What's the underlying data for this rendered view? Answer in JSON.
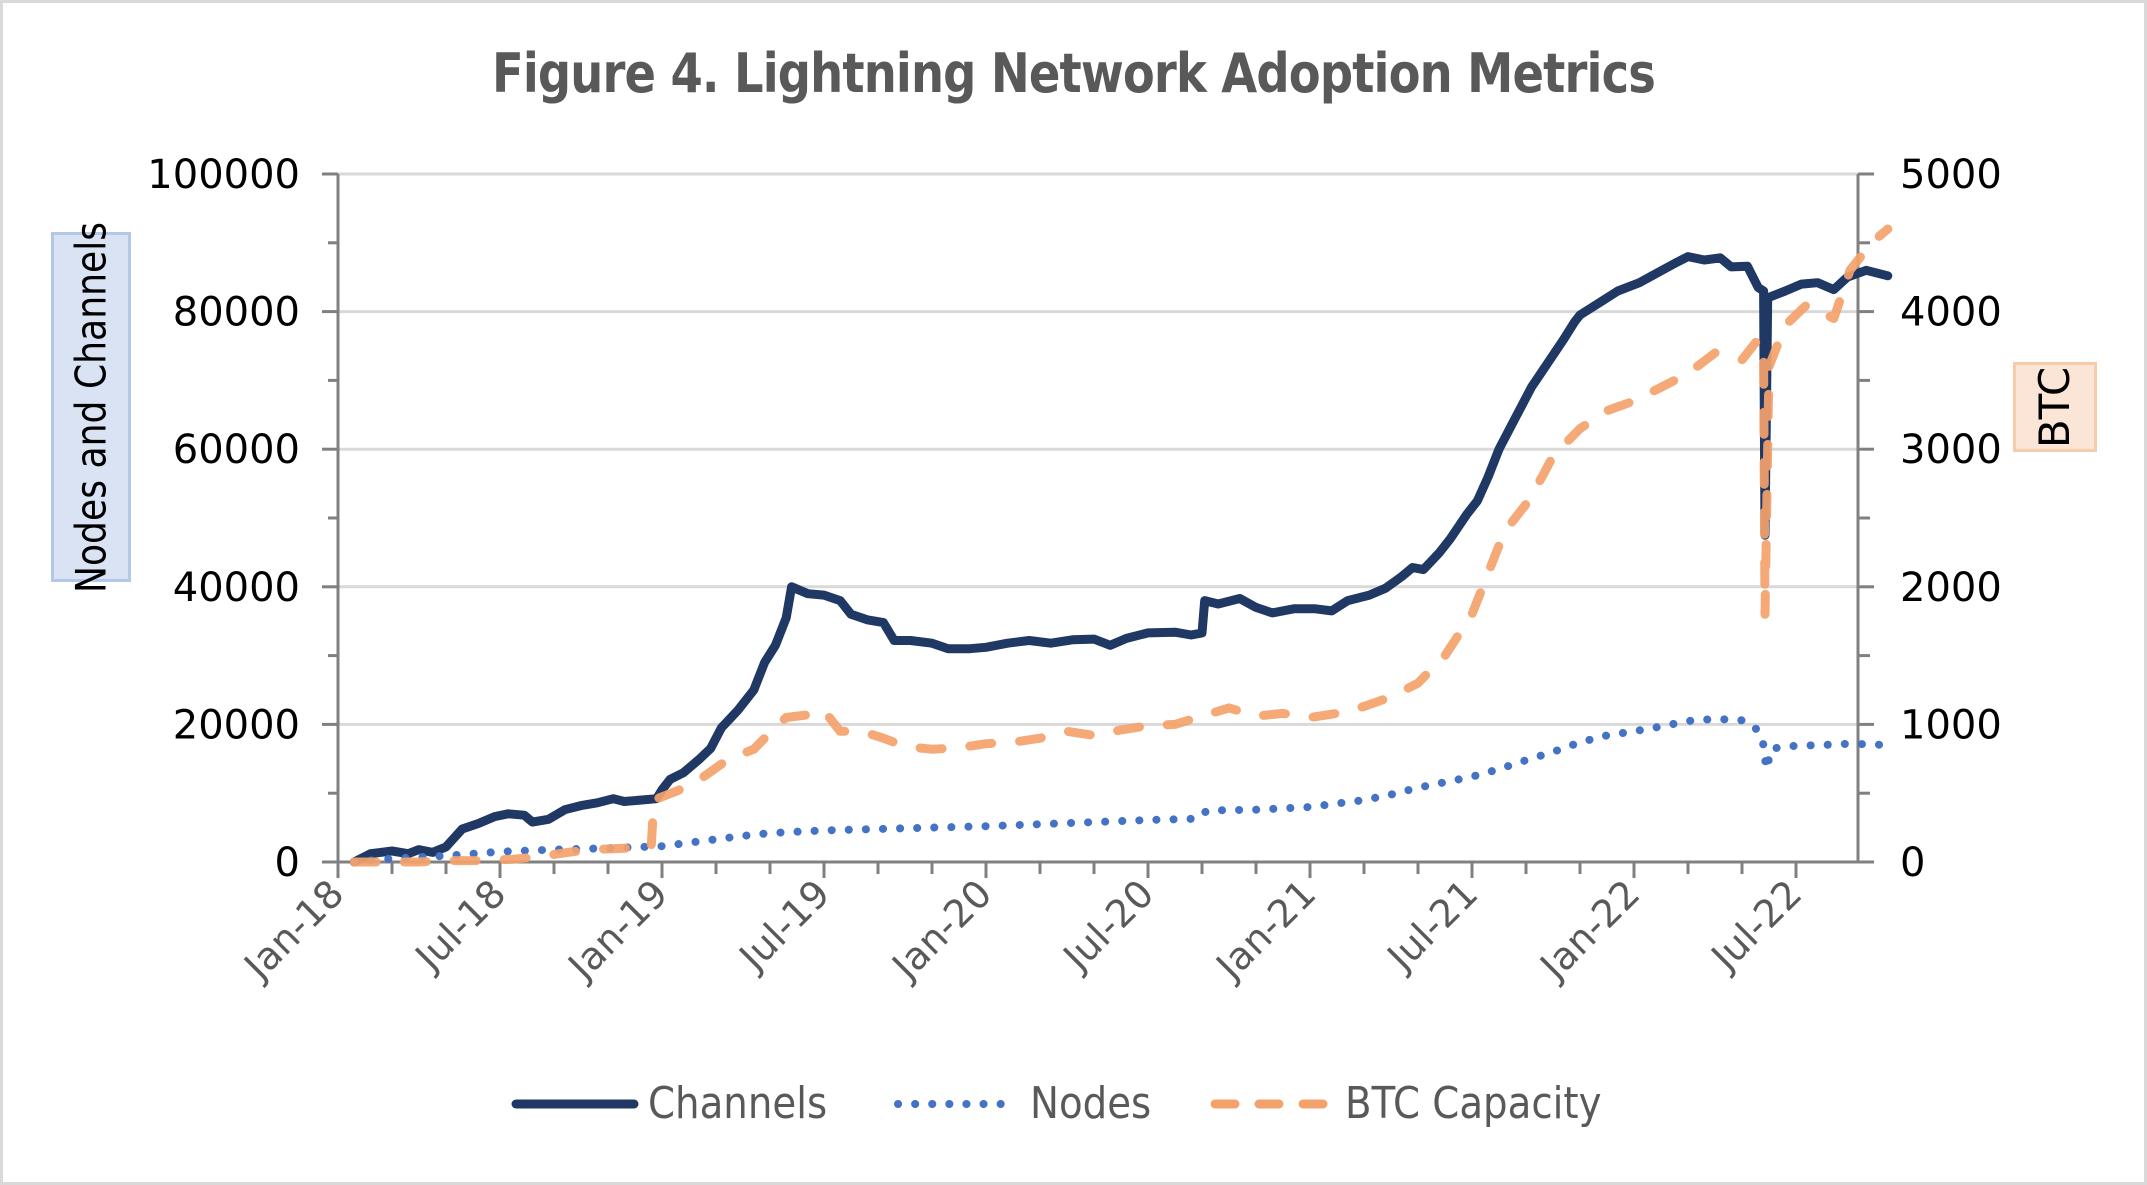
{
  "chart_data": {
    "type": "line",
    "title": "Figure 4. Lightning Network Adoption Metrics",
    "xlabel": "",
    "ylabel": "Nodes and Channels",
    "y2label": "BTC",
    "ylim": [
      0,
      100000
    ],
    "y2lim": [
      0,
      5000
    ],
    "yticks": [
      "0",
      "20000",
      "40000",
      "60000",
      "80000",
      "100000"
    ],
    "y2ticks": [
      "0",
      "1000",
      "2000",
      "3000",
      "4000",
      "5000"
    ],
    "xlim_months_from_jan18": [
      0,
      56.3
    ],
    "xtick_labels": [
      "Jan-18",
      "Jul-18",
      "Jan-19",
      "Jul-19",
      "Jan-20",
      "Jul-20",
      "Jan-21",
      "Jul-21",
      "Jan-22",
      "Jul-22"
    ],
    "xtick_label_months": [
      0,
      6,
      12,
      18,
      24,
      30,
      36,
      42,
      48,
      54
    ],
    "minor_tick_interval_months": 2,
    "grid": "horizontal",
    "legend_position": "bottom",
    "legend": [
      "Channels",
      "Nodes",
      "BTC Capacity"
    ],
    "series": [
      {
        "name": "Channels",
        "axis": "left",
        "style": "solid",
        "color": "#1f3864",
        "points": [
          [
            0.6,
            0
          ],
          [
            1.2,
            1200
          ],
          [
            2.0,
            1600
          ],
          [
            2.6,
            1200
          ],
          [
            3.0,
            1800
          ],
          [
            3.5,
            1400
          ],
          [
            4.0,
            2200
          ],
          [
            4.6,
            4800
          ],
          [
            5.2,
            5600
          ],
          [
            5.8,
            6600
          ],
          [
            6.3,
            7000
          ],
          [
            6.9,
            6800
          ],
          [
            7.2,
            5800
          ],
          [
            7.8,
            6200
          ],
          [
            8.4,
            7600
          ],
          [
            9.0,
            8200
          ],
          [
            9.6,
            8600
          ],
          [
            10.2,
            9200
          ],
          [
            10.6,
            8800
          ],
          [
            11.2,
            9000
          ],
          [
            11.8,
            9200
          ],
          [
            12.0,
            10500
          ],
          [
            12.3,
            12000
          ],
          [
            12.8,
            13000
          ],
          [
            13.4,
            15000
          ],
          [
            13.8,
            16500
          ],
          [
            14.2,
            19500
          ],
          [
            14.8,
            22000
          ],
          [
            15.4,
            25000
          ],
          [
            15.8,
            29000
          ],
          [
            16.2,
            31500
          ],
          [
            16.6,
            35500
          ],
          [
            16.8,
            40000
          ],
          [
            17.4,
            39000
          ],
          [
            18.0,
            38800
          ],
          [
            18.6,
            38000
          ],
          [
            19.0,
            36000
          ],
          [
            19.6,
            35200
          ],
          [
            20.2,
            34800
          ],
          [
            20.6,
            32200
          ],
          [
            21.2,
            32200
          ],
          [
            22.0,
            31800
          ],
          [
            22.6,
            31000
          ],
          [
            23.4,
            31000
          ],
          [
            24.0,
            31200
          ],
          [
            24.8,
            31800
          ],
          [
            25.6,
            32200
          ],
          [
            26.4,
            31800
          ],
          [
            27.2,
            32300
          ],
          [
            28.0,
            32400
          ],
          [
            28.6,
            31500
          ],
          [
            29.2,
            32500
          ],
          [
            30.0,
            33300
          ],
          [
            31.0,
            33400
          ],
          [
            31.6,
            33000
          ],
          [
            32.0,
            33300
          ],
          [
            32.1,
            38000
          ],
          [
            32.6,
            37500
          ],
          [
            33.4,
            38300
          ],
          [
            34.0,
            37000
          ],
          [
            34.6,
            36200
          ],
          [
            35.4,
            36800
          ],
          [
            36.2,
            36800
          ],
          [
            36.8,
            36500
          ],
          [
            37.4,
            38000
          ],
          [
            38.2,
            38800
          ],
          [
            38.8,
            39800
          ],
          [
            39.4,
            41500
          ],
          [
            39.8,
            42800
          ],
          [
            40.2,
            42500
          ],
          [
            40.8,
            45000
          ],
          [
            41.2,
            47000
          ],
          [
            41.8,
            50500
          ],
          [
            42.2,
            52500
          ],
          [
            42.6,
            56000
          ],
          [
            43.0,
            60000
          ],
          [
            43.6,
            64500
          ],
          [
            44.2,
            69000
          ],
          [
            44.8,
            72500
          ],
          [
            45.4,
            76000
          ],
          [
            45.8,
            78500
          ],
          [
            46.0,
            79500
          ],
          [
            46.8,
            81500
          ],
          [
            47.4,
            83000
          ],
          [
            48.2,
            84200
          ],
          [
            48.8,
            85500
          ],
          [
            49.6,
            87200
          ],
          [
            50.0,
            88000
          ],
          [
            50.6,
            87500
          ],
          [
            51.2,
            87800
          ],
          [
            51.6,
            86500
          ],
          [
            52.2,
            86600
          ],
          [
            52.6,
            83500
          ],
          [
            52.8,
            83000
          ],
          [
            52.85,
            47500
          ],
          [
            52.95,
            82000
          ],
          [
            53.6,
            83000
          ],
          [
            54.2,
            84000
          ],
          [
            54.8,
            84200
          ],
          [
            55.4,
            83200
          ],
          [
            55.9,
            85000
          ],
          [
            56.6,
            86000
          ],
          [
            57.4,
            85200
          ]
        ]
      },
      {
        "name": "Nodes",
        "axis": "left",
        "style": "dotted",
        "color": "#4472c4",
        "points": [
          [
            0.6,
            0
          ],
          [
            2.0,
            500
          ],
          [
            4.0,
            900
          ],
          [
            6.0,
            1500
          ],
          [
            8.0,
            1800
          ],
          [
            10.0,
            2000
          ],
          [
            12.0,
            2300
          ],
          [
            13.0,
            2800
          ],
          [
            14.0,
            3300
          ],
          [
            15.0,
            3800
          ],
          [
            16.0,
            4200
          ],
          [
            17.0,
            4400
          ],
          [
            18.0,
            4600
          ],
          [
            20.0,
            4800
          ],
          [
            22.0,
            5000
          ],
          [
            24.0,
            5200
          ],
          [
            26.0,
            5500
          ],
          [
            28.0,
            5800
          ],
          [
            30.0,
            6100
          ],
          [
            31.8,
            6300
          ],
          [
            32.2,
            7500
          ],
          [
            34.0,
            7600
          ],
          [
            36.0,
            8000
          ],
          [
            37.0,
            8500
          ],
          [
            38.0,
            9000
          ],
          [
            39.0,
            9800
          ],
          [
            40.0,
            10800
          ],
          [
            41.0,
            11600
          ],
          [
            42.0,
            12400
          ],
          [
            43.0,
            13500
          ],
          [
            44.0,
            14800
          ],
          [
            45.0,
            16000
          ],
          [
            46.0,
            17400
          ],
          [
            47.0,
            18400
          ],
          [
            48.0,
            19000
          ],
          [
            49.0,
            19700
          ],
          [
            50.0,
            20500
          ],
          [
            51.0,
            20800
          ],
          [
            52.0,
            20600
          ],
          [
            52.5,
            19500
          ],
          [
            52.8,
            17000
          ],
          [
            52.9,
            13500
          ],
          [
            53.1,
            16500
          ],
          [
            54.0,
            16900
          ],
          [
            55.0,
            17000
          ],
          [
            56.0,
            17200
          ],
          [
            57.4,
            17000
          ]
        ]
      },
      {
        "name": "BTC Capacity",
        "axis": "right",
        "style": "dashed",
        "color": "#f4a26b",
        "points": [
          [
            0.6,
            0
          ],
          [
            1.6,
            0
          ],
          [
            3.0,
            0
          ],
          [
            4.0,
            10
          ],
          [
            5.4,
            10
          ],
          [
            6.5,
            20
          ],
          [
            7.5,
            40
          ],
          [
            8.5,
            70
          ],
          [
            9.4,
            90
          ],
          [
            10.6,
            100
          ],
          [
            11.4,
            105
          ],
          [
            11.6,
            110
          ],
          [
            11.7,
            450
          ],
          [
            12.6,
            520
          ],
          [
            13.4,
            600
          ],
          [
            14.4,
            740
          ],
          [
            15.4,
            820
          ],
          [
            16.2,
            980
          ],
          [
            16.6,
            1050
          ],
          [
            17.4,
            1070
          ],
          [
            18.0,
            1100
          ],
          [
            18.6,
            950
          ],
          [
            19.4,
            950
          ],
          [
            20.2,
            900
          ],
          [
            21.0,
            840
          ],
          [
            22.0,
            820
          ],
          [
            23.0,
            830
          ],
          [
            24.0,
            860
          ],
          [
            25.0,
            870
          ],
          [
            26.0,
            900
          ],
          [
            27.0,
            950
          ],
          [
            28.0,
            920
          ],
          [
            29.0,
            960
          ],
          [
            30.0,
            990
          ],
          [
            31.0,
            1000
          ],
          [
            32.0,
            1060
          ],
          [
            33.0,
            1120
          ],
          [
            34.0,
            1060
          ],
          [
            35.0,
            1080
          ],
          [
            36.0,
            1050
          ],
          [
            37.0,
            1080
          ],
          [
            38.0,
            1130
          ],
          [
            39.0,
            1200
          ],
          [
            40.0,
            1300
          ],
          [
            41.0,
            1500
          ],
          [
            42.0,
            1800
          ],
          [
            42.6,
            2100
          ],
          [
            43.2,
            2400
          ],
          [
            44.0,
            2600
          ],
          [
            44.6,
            2800
          ],
          [
            45.0,
            2950
          ],
          [
            46.0,
            3150
          ],
          [
            47.0,
            3280
          ],
          [
            48.0,
            3350
          ],
          [
            49.0,
            3450
          ],
          [
            50.0,
            3550
          ],
          [
            51.0,
            3700
          ],
          [
            52.0,
            3650
          ],
          [
            52.6,
            3800
          ],
          [
            52.8,
            3650
          ],
          [
            52.85,
            1800
          ],
          [
            53.0,
            3600
          ],
          [
            53.6,
            3900
          ],
          [
            54.4,
            4050
          ],
          [
            55.4,
            3950
          ],
          [
            56.0,
            4300
          ],
          [
            56.8,
            4500
          ],
          [
            57.4,
            4600
          ]
        ]
      }
    ]
  },
  "labels": {
    "title": "Figure 4. Lightning Network Adoption Metrics",
    "y_left": "Nodes and Channels",
    "y_right": "BTC",
    "legend": {
      "channels": "Channels",
      "nodes": "Nodes",
      "btc": "BTC Capacity"
    }
  }
}
